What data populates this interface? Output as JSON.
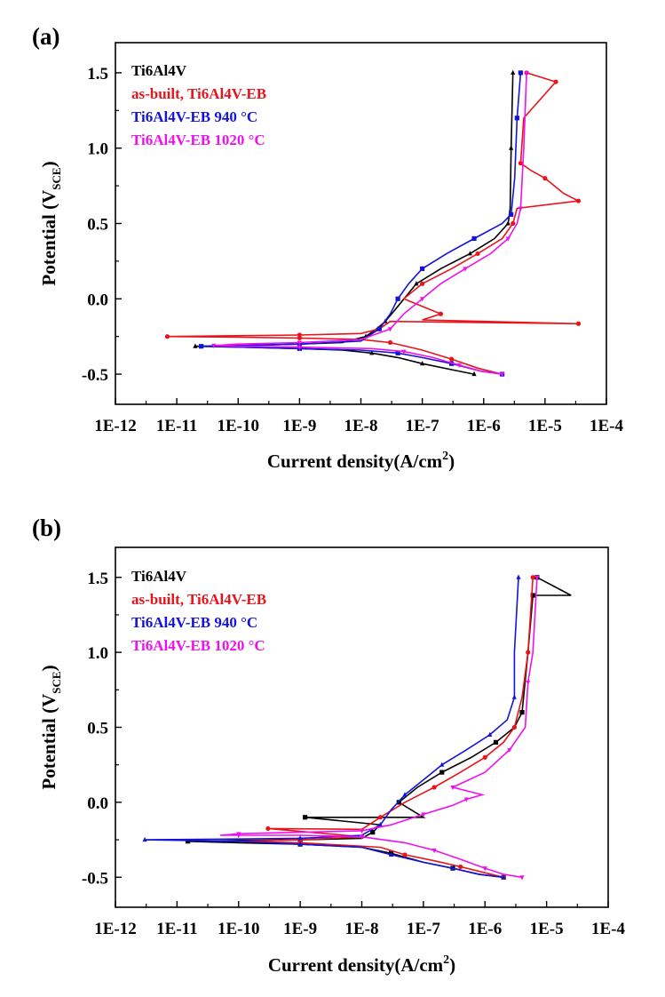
{
  "chart_data": [
    {
      "panel_label": "(a)",
      "type": "line",
      "xlabel": "Current density(A/cm²)",
      "xlabel_main": "Current density(A/cm",
      "xlabel_sup": "2",
      "xlabel_end": ")",
      "ylabel": "Potential (VSCE)",
      "ylabel_main": "Potential (V",
      "ylabel_sub": "SCE",
      "ylabel_end": ")",
      "xscale": "log",
      "xlim": [
        1e-12,
        0.0001
      ],
      "ylim": [
        -0.7,
        1.7
      ],
      "xticks": [
        {
          "value": 1e-12,
          "label": "1E-12"
        },
        {
          "value": 1e-11,
          "label": "1E-11"
        },
        {
          "value": 1e-10,
          "label": "1E-10"
        },
        {
          "value": 1e-09,
          "label": "1E-9"
        },
        {
          "value": 1e-08,
          "label": "1E-8"
        },
        {
          "value": 1e-07,
          "label": "1E-7"
        },
        {
          "value": 1e-06,
          "label": "1E-6"
        },
        {
          "value": 1e-05,
          "label": "1E-5"
        },
        {
          "value": 0.0001,
          "label": "1E-4"
        }
      ],
      "yticks": [
        {
          "value": -0.5,
          "label": "-0.5"
        },
        {
          "value": 0.0,
          "label": "0.0"
        },
        {
          "value": 0.5,
          "label": "0.5"
        },
        {
          "value": 1.0,
          "label": "1.0"
        },
        {
          "value": 1.5,
          "label": "1.5"
        }
      ],
      "legend_position": "top-left",
      "grid": false,
      "series": [
        {
          "name": "Ti6Al4V",
          "color": "#000000",
          "marker": "triangle",
          "points": [
            [
              7e-07,
              -0.5
            ],
            [
              3e-07,
              -0.47
            ],
            [
              1e-07,
              -0.43
            ],
            [
              4e-08,
              -0.39
            ],
            [
              1.5e-08,
              -0.36
            ],
            [
              5e-09,
              -0.34
            ],
            [
              1e-09,
              -0.33
            ],
            [
              1e-10,
              -0.32
            ],
            [
              2e-11,
              -0.315
            ],
            [
              1e-10,
              -0.31
            ],
            [
              1e-09,
              -0.3
            ],
            [
              5e-09,
              -0.29
            ],
            [
              1.2e-08,
              -0.25
            ],
            [
              1.8e-08,
              -0.2
            ],
            [
              2.5e-08,
              -0.15
            ],
            [
              4e-08,
              -0.05
            ],
            [
              8e-08,
              0.1
            ],
            [
              2e-07,
              0.2
            ],
            [
              6e-07,
              0.3
            ],
            [
              1.5e-06,
              0.4
            ],
            [
              2.5e-06,
              0.5
            ],
            [
              2.7e-06,
              0.6
            ],
            [
              2.8e-06,
              1.0
            ],
            [
              3e-06,
              1.5
            ]
          ]
        },
        {
          "name": "as-built, Ti6Al4V-EB",
          "color": "#e8141c",
          "marker": "circle",
          "points": [
            [
              2e-06,
              -0.5
            ],
            [
              8e-07,
              -0.46
            ],
            [
              3e-07,
              -0.4
            ],
            [
              1e-07,
              -0.34
            ],
            [
              3e-08,
              -0.29
            ],
            [
              1e-08,
              -0.27
            ],
            [
              1e-09,
              -0.26
            ],
            [
              1e-10,
              -0.255
            ],
            [
              7e-12,
              -0.25
            ],
            [
              1e-10,
              -0.245
            ],
            [
              1e-09,
              -0.24
            ],
            [
              1e-08,
              -0.23
            ],
            [
              2e-08,
              -0.2
            ],
            [
              3e-08,
              -0.15
            ],
            [
              3.5e-05,
              -0.165
            ],
            [
              1e-07,
              -0.14
            ],
            [
              2e-07,
              -0.1
            ],
            [
              5e-08,
              0.0
            ],
            [
              1e-07,
              0.1
            ],
            [
              3e-07,
              0.2
            ],
            [
              8e-07,
              0.3
            ],
            [
              2e-06,
              0.4
            ],
            [
              3e-06,
              0.5
            ],
            [
              3.5e-06,
              0.6
            ],
            [
              3.5e-05,
              0.65
            ],
            [
              2e-05,
              0.7
            ],
            [
              1e-05,
              0.8
            ],
            [
              6e-06,
              0.85
            ],
            [
              4e-06,
              0.9
            ],
            [
              4.5e-06,
              1.2
            ],
            [
              1.5e-05,
              1.44
            ],
            [
              5e-06,
              1.5
            ]
          ]
        },
        {
          "name": "Ti6Al4V-EB 940 °C",
          "color": "#1414d8",
          "marker": "square",
          "points": [
            [
              2e-06,
              -0.5
            ],
            [
              9e-07,
              -0.48
            ],
            [
              3e-07,
              -0.43
            ],
            [
              1e-07,
              -0.39
            ],
            [
              4e-08,
              -0.36
            ],
            [
              1e-08,
              -0.34
            ],
            [
              1e-09,
              -0.33
            ],
            [
              1e-10,
              -0.32
            ],
            [
              2.5e-11,
              -0.315
            ],
            [
              1e-10,
              -0.31
            ],
            [
              1e-09,
              -0.3
            ],
            [
              1e-08,
              -0.28
            ],
            [
              2e-08,
              -0.2
            ],
            [
              3e-08,
              -0.1
            ],
            [
              4e-08,
              0.0
            ],
            [
              6e-08,
              0.1
            ],
            [
              1e-07,
              0.2
            ],
            [
              2.5e-07,
              0.3
            ],
            [
              7e-07,
              0.4
            ],
            [
              2e-06,
              0.5
            ],
            [
              2.8e-06,
              0.56
            ],
            [
              3.2e-06,
              0.8
            ],
            [
              3.5e-06,
              1.2
            ],
            [
              4e-06,
              1.5
            ]
          ]
        },
        {
          "name": "Ti6Al4V-EB 1020 °C",
          "color": "#ee10ee",
          "marker": "inverted-triangle",
          "points": [
            [
              2e-06,
              -0.5
            ],
            [
              9e-07,
              -0.48
            ],
            [
              4e-07,
              -0.44
            ],
            [
              1.5e-07,
              -0.39
            ],
            [
              5e-08,
              -0.35
            ],
            [
              1.5e-08,
              -0.33
            ],
            [
              1e-09,
              -0.32
            ],
            [
              1e-10,
              -0.315
            ],
            [
              4e-11,
              -0.31
            ],
            [
              1e-10,
              -0.3
            ],
            [
              1e-09,
              -0.29
            ],
            [
              1e-08,
              -0.27
            ],
            [
              3e-08,
              -0.2
            ],
            [
              5e-08,
              -0.1
            ],
            [
              1e-07,
              0.0
            ],
            [
              2e-07,
              0.1
            ],
            [
              5e-07,
              0.2
            ],
            [
              1.3e-06,
              0.3
            ],
            [
              2.5e-06,
              0.4
            ],
            [
              3.5e-06,
              0.5
            ],
            [
              4e-06,
              0.6
            ],
            [
              4.5e-06,
              1.0
            ],
            [
              5e-06,
              1.5
            ]
          ]
        }
      ]
    },
    {
      "panel_label": "(b)",
      "type": "line",
      "xlabel": "Current density(A/cm²)",
      "xlabel_main": "Current density(A/cm",
      "xlabel_sup": "2",
      "xlabel_end": ")",
      "ylabel": "Potential (VSCE)",
      "ylabel_main": "Potential (V",
      "ylabel_sub": "SCE",
      "ylabel_end": ")",
      "xscale": "log",
      "xlim": [
        1e-12,
        0.0001
      ],
      "ylim": [
        -0.7,
        1.7
      ],
      "xticks": [
        {
          "value": 1e-12,
          "label": "1E-12"
        },
        {
          "value": 1e-11,
          "label": "1E-11"
        },
        {
          "value": 1e-10,
          "label": "1E-10"
        },
        {
          "value": 1e-09,
          "label": "1E-9"
        },
        {
          "value": 1e-08,
          "label": "1E-8"
        },
        {
          "value": 1e-07,
          "label": "1E-7"
        },
        {
          "value": 1e-06,
          "label": "1E-6"
        },
        {
          "value": 1e-05,
          "label": "1E-5"
        },
        {
          "value": 0.0001,
          "label": "1E-4"
        }
      ],
      "yticks": [
        {
          "value": -0.5,
          "label": "-0.5"
        },
        {
          "value": 0.0,
          "label": "0.0"
        },
        {
          "value": 0.5,
          "label": "0.5"
        },
        {
          "value": 1.0,
          "label": "1.0"
        },
        {
          "value": 1.5,
          "label": "1.5"
        }
      ],
      "legend_position": "top-left",
      "grid": false,
      "series": [
        {
          "name": "Ti6Al4V",
          "color": "#000000",
          "marker": "square",
          "points": [
            [
              2e-06,
              -0.5
            ],
            [
              8e-07,
              -0.48
            ],
            [
              3e-07,
              -0.44
            ],
            [
              1e-07,
              -0.4
            ],
            [
              3e-08,
              -0.34
            ],
            [
              1e-08,
              -0.3
            ],
            [
              1e-09,
              -0.28
            ],
            [
              1e-10,
              -0.27
            ],
            [
              1.5e-11,
              -0.26
            ],
            [
              1e-10,
              -0.255
            ],
            [
              1e-09,
              -0.25
            ],
            [
              1e-08,
              -0.24
            ],
            [
              1.5e-08,
              -0.2
            ],
            [
              2e-08,
              -0.15
            ],
            [
              1.2e-09,
              -0.1
            ],
            [
              1e-07,
              -0.1
            ],
            [
              4e-08,
              0.0
            ],
            [
              8e-08,
              0.1
            ],
            [
              2e-07,
              0.2
            ],
            [
              6e-07,
              0.3
            ],
            [
              1.5e-06,
              0.4
            ],
            [
              3e-06,
              0.5
            ],
            [
              4e-06,
              0.6
            ],
            [
              5e-06,
              1.0
            ],
            [
              6e-06,
              1.38
            ],
            [
              2.5e-05,
              1.38
            ],
            [
              7e-06,
              1.5
            ]
          ]
        },
        {
          "name": "as-built, Ti6Al4V-EB",
          "color": "#e8141c",
          "marker": "circle",
          "points": [
            [
              2e-06,
              -0.5
            ],
            [
              1e-06,
              -0.47
            ],
            [
              4e-07,
              -0.43
            ],
            [
              1.5e-07,
              -0.39
            ],
            [
              5e-08,
              -0.35
            ],
            [
              2e-08,
              -0.3
            ],
            [
              1e-09,
              -0.27
            ],
            [
              1e-10,
              -0.26
            ],
            [
              1e-09,
              -0.25
            ],
            [
              1e-08,
              -0.23
            ],
            [
              3e-10,
              -0.175
            ],
            [
              1e-08,
              -0.18
            ],
            [
              2e-08,
              -0.1
            ],
            [
              5e-08,
              0.0
            ],
            [
              1.5e-07,
              0.1
            ],
            [
              4e-07,
              0.2
            ],
            [
              1e-06,
              0.3
            ],
            [
              2e-06,
              0.4
            ],
            [
              3e-06,
              0.5
            ],
            [
              4e-06,
              0.7
            ],
            [
              5e-06,
              1.0
            ],
            [
              6e-06,
              1.5
            ]
          ]
        },
        {
          "name": "Ti6Al4V-EB 940 °C",
          "color": "#1414d8",
          "marker": "triangle",
          "points": [
            [
              2e-06,
              -0.5
            ],
            [
              8e-07,
              -0.48
            ],
            [
              3e-07,
              -0.44
            ],
            [
              1e-07,
              -0.4
            ],
            [
              3e-08,
              -0.35
            ],
            [
              1e-08,
              -0.3
            ],
            [
              1e-09,
              -0.28
            ],
            [
              1e-10,
              -0.26
            ],
            [
              3e-12,
              -0.25
            ],
            [
              1e-10,
              -0.245
            ],
            [
              1e-09,
              -0.24
            ],
            [
              1e-08,
              -0.22
            ],
            [
              2e-08,
              -0.15
            ],
            [
              3e-08,
              -0.05
            ],
            [
              5e-08,
              0.05
            ],
            [
              1e-07,
              0.15
            ],
            [
              2e-07,
              0.25
            ],
            [
              5e-07,
              0.35
            ],
            [
              1.2e-06,
              0.45
            ],
            [
              2.3e-06,
              0.55
            ],
            [
              3e-06,
              0.7
            ],
            [
              3e-06,
              1.0
            ],
            [
              3.5e-06,
              1.5
            ]
          ]
        },
        {
          "name": "Ti6Al4V-EB 1020 °C",
          "color": "#ee10ee",
          "marker": "inverted-triangle",
          "points": [
            [
              4e-06,
              -0.5
            ],
            [
              2e-06,
              -0.48
            ],
            [
              1e-06,
              -0.44
            ],
            [
              4e-07,
              -0.38
            ],
            [
              1.5e-07,
              -0.32
            ],
            [
              5e-08,
              -0.27
            ],
            [
              1e-08,
              -0.23
            ],
            [
              1e-09,
              -0.22
            ],
            [
              1e-10,
              -0.22
            ],
            [
              5e-11,
              -0.22
            ],
            [
              1e-10,
              -0.21
            ],
            [
              1e-09,
              -0.2
            ],
            [
              1e-08,
              -0.19
            ],
            [
              3e-08,
              -0.15
            ],
            [
              1e-07,
              -0.08
            ],
            [
              3e-07,
              -0.02
            ],
            [
              5e-07,
              0.02
            ],
            [
              9e-07,
              0.05
            ],
            [
              3e-07,
              0.1
            ],
            [
              1e-06,
              0.2
            ],
            [
              2.5e-06,
              0.35
            ],
            [
              4.5e-06,
              0.5
            ],
            [
              5e-06,
              0.8
            ],
            [
              6e-06,
              1.0
            ],
            [
              7e-06,
              1.5
            ]
          ]
        }
      ]
    }
  ]
}
